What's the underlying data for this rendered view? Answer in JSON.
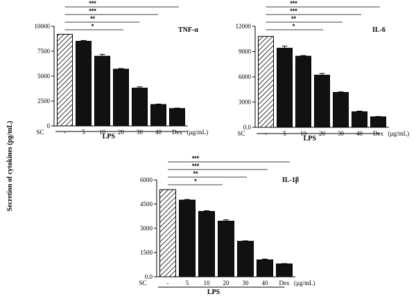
{
  "y_axis_label": "Secretion of cytokines (pg/mL)",
  "chart_data": [
    {
      "type": "bar",
      "title": "TNF-α",
      "categories": [
        "-",
        "5",
        "10",
        "20",
        "30",
        "40",
        "Dex"
      ],
      "values": [
        9200,
        8500,
        7000,
        5700,
        3800,
        2150,
        1750
      ],
      "errors": [
        0,
        80,
        180,
        60,
        120,
        50,
        40
      ],
      "ylim": [
        0,
        10000
      ],
      "yticks": [
        "0",
        "2500",
        "5000",
        "7500",
        "10000"
      ],
      "sc_label": "SC",
      "unit_label": "(µg/mL)",
      "group_label": "LPS",
      "significance": [
        "***",
        "***",
        "**",
        "*"
      ],
      "grid": false
    },
    {
      "type": "bar",
      "title": "IL-6",
      "categories": [
        "-",
        "5",
        "10",
        "20",
        "30",
        "40",
        "Dex"
      ],
      "values": [
        10800,
        9400,
        8450,
        6200,
        4150,
        1850,
        1250
      ],
      "errors": [
        0,
        250,
        80,
        200,
        60,
        80,
        40
      ],
      "ylim": [
        0,
        12000
      ],
      "yticks": [
        "0.0",
        "3000",
        "6000",
        "9000",
        "12000"
      ],
      "sc_label": "SC",
      "unit_label": "(µg/mL)",
      "group_label": "LPS",
      "significance": [
        "***",
        "***",
        "**",
        "*"
      ],
      "grid": false
    },
    {
      "type": "bar",
      "title": "IL-1β",
      "categories": [
        "-",
        "5",
        "10",
        "20",
        "30",
        "40",
        "Dex"
      ],
      "values": [
        5400,
        4750,
        4050,
        3450,
        2200,
        1050,
        800
      ],
      "errors": [
        0,
        40,
        40,
        80,
        30,
        50,
        20
      ],
      "ylim": [
        0,
        6000
      ],
      "yticks": [
        "0.0",
        "1500",
        "3000",
        "4500",
        "6000"
      ],
      "sc_label": "SC",
      "unit_label": "(µg/mL)",
      "group_label": "LPS",
      "significance": [
        "***",
        "***",
        "**",
        "*"
      ],
      "grid": false
    }
  ]
}
